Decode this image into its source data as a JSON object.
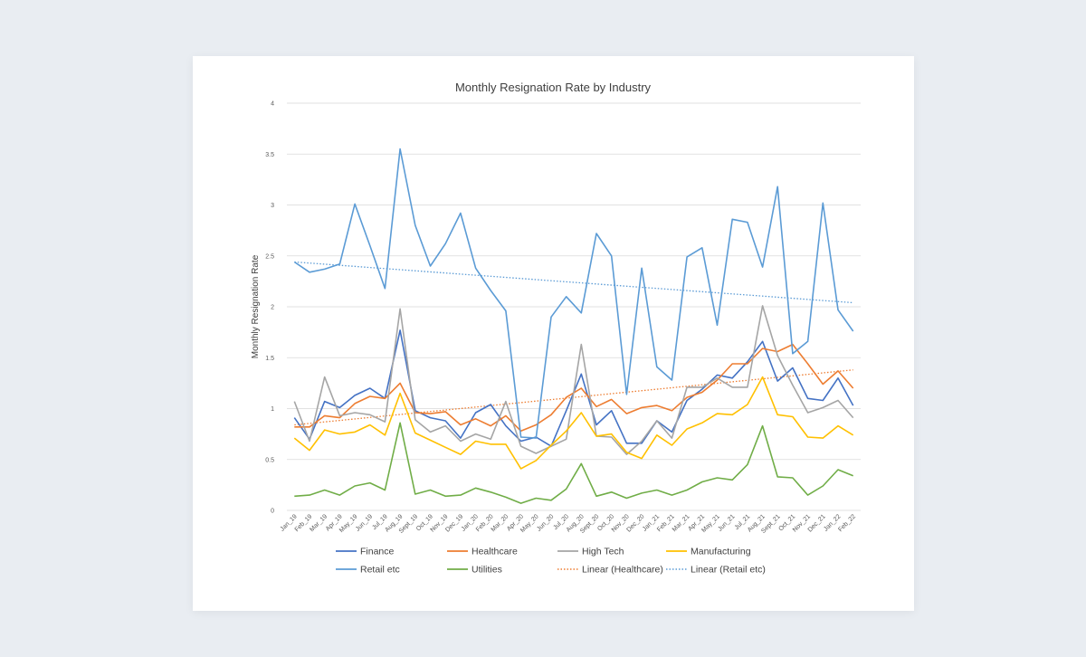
{
  "chart_data": {
    "type": "line",
    "title": "Monthly Resignation Rate by Industry",
    "xlabel": "",
    "ylabel": "Monthly Resignation Rate",
    "ylim": [
      0,
      4
    ],
    "yticks": [
      0,
      0.5,
      1,
      1.5,
      2,
      2.5,
      3,
      3.5,
      4
    ],
    "ytick_labels": [
      "0",
      "0.5",
      "1",
      "1.5",
      "2",
      "2.5",
      "3",
      "3.5",
      "4"
    ],
    "grid": true,
    "legend_position": "bottom",
    "categories": [
      "Jan_19",
      "Feb_19",
      "Mar_19",
      "Apr_19",
      "May_19",
      "Jun_19",
      "Jul_19",
      "Aug_19",
      "Sept_19",
      "Oct_19",
      "Nov_19",
      "Dec_19",
      "Jan_20",
      "Feb_20",
      "Mar_20",
      "Apr_20",
      "May_20",
      "Jun_20",
      "Jul_20",
      "Aug_20",
      "Sept_20",
      "Oct_20",
      "Nov_20",
      "Dec_20",
      "Jan_21",
      "Feb_21",
      "Mar_21",
      "Apr_21",
      "May_21",
      "Jun_21",
      "Jul_21",
      "Aug_21",
      "Sept_21",
      "Oct_21",
      "Nov_21",
      "Dec_21",
      "Jan_22",
      "Feb_22"
    ],
    "series": [
      {
        "name": "Finance",
        "color": "#4472c4",
        "style": "solid",
        "values": [
          0.91,
          0.7,
          1.07,
          1.01,
          1.13,
          1.2,
          1.1,
          1.77,
          0.98,
          0.91,
          0.88,
          0.71,
          0.96,
          1.04,
          0.83,
          0.68,
          0.72,
          0.63,
          0.98,
          1.34,
          0.84,
          0.98,
          0.66,
          0.66,
          0.88,
          0.77,
          1.08,
          1.19,
          1.33,
          1.3,
          1.46,
          1.66,
          1.27,
          1.4,
          1.1,
          1.08,
          1.3,
          1.03
        ]
      },
      {
        "name": "Healthcare",
        "color": "#ed7d31",
        "style": "solid",
        "values": [
          0.82,
          0.82,
          0.93,
          0.91,
          1.05,
          1.12,
          1.1,
          1.25,
          0.96,
          0.95,
          0.97,
          0.84,
          0.9,
          0.83,
          0.93,
          0.78,
          0.84,
          0.94,
          1.11,
          1.2,
          1.02,
          1.09,
          0.95,
          1.01,
          1.03,
          0.98,
          1.11,
          1.16,
          1.28,
          1.44,
          1.44,
          1.59,
          1.56,
          1.63,
          1.44,
          1.24,
          1.37,
          1.2
        ]
      },
      {
        "name": "High Tech",
        "color": "#a5a5a5",
        "style": "solid",
        "values": [
          1.07,
          0.68,
          1.31,
          0.93,
          0.96,
          0.94,
          0.87,
          1.98,
          0.89,
          0.77,
          0.83,
          0.68,
          0.75,
          0.7,
          1.07,
          0.63,
          0.56,
          0.63,
          0.7,
          1.63,
          0.73,
          0.72,
          0.55,
          0.68,
          0.88,
          0.71,
          1.21,
          1.21,
          1.3,
          1.21,
          1.21,
          2.01,
          1.52,
          1.23,
          0.96,
          1.01,
          1.08,
          0.91
        ]
      },
      {
        "name": "Manufacturing",
        "color": "#ffc000",
        "style": "solid",
        "values": [
          0.71,
          0.59,
          0.79,
          0.75,
          0.77,
          0.84,
          0.74,
          1.15,
          0.76,
          0.69,
          0.62,
          0.55,
          0.68,
          0.65,
          0.65,
          0.41,
          0.49,
          0.64,
          0.78,
          0.96,
          0.73,
          0.75,
          0.57,
          0.51,
          0.74,
          0.64,
          0.8,
          0.86,
          0.95,
          0.94,
          1.04,
          1.31,
          0.94,
          0.92,
          0.72,
          0.71,
          0.83,
          0.74
        ]
      },
      {
        "name": "Retail etc",
        "color": "#5b9bd5",
        "style": "solid",
        "values": [
          2.44,
          2.34,
          2.37,
          2.42,
          3.01,
          2.6,
          2.18,
          3.55,
          2.8,
          2.4,
          2.62,
          2.92,
          2.38,
          2.16,
          1.96,
          0.72,
          0.71,
          1.9,
          2.1,
          1.94,
          2.72,
          2.5,
          1.14,
          2.38,
          1.41,
          1.28,
          2.49,
          2.58,
          1.82,
          2.86,
          2.83,
          2.39,
          3.18,
          1.54,
          1.66,
          3.02,
          1.97,
          1.76
        ]
      },
      {
        "name": "Utilities",
        "color": "#70ad47",
        "style": "solid",
        "values": [
          0.14,
          0.15,
          0.2,
          0.15,
          0.24,
          0.27,
          0.2,
          0.86,
          0.16,
          0.2,
          0.14,
          0.15,
          0.22,
          0.18,
          0.13,
          0.07,
          0.12,
          0.1,
          0.21,
          0.46,
          0.14,
          0.18,
          0.12,
          0.17,
          0.2,
          0.15,
          0.2,
          0.28,
          0.32,
          0.3,
          0.45,
          0.83,
          0.33,
          0.32,
          0.15,
          0.24,
          0.4,
          0.34
        ]
      }
    ],
    "trendlines": [
      {
        "name": "Linear (Healthcare)",
        "color": "#ed7d31",
        "style": "dotted",
        "start": 0.84,
        "end": 1.38
      },
      {
        "name": "Linear (Retail etc)",
        "color": "#5b9bd5",
        "style": "dotted",
        "start": 2.44,
        "end": 2.04
      }
    ]
  }
}
